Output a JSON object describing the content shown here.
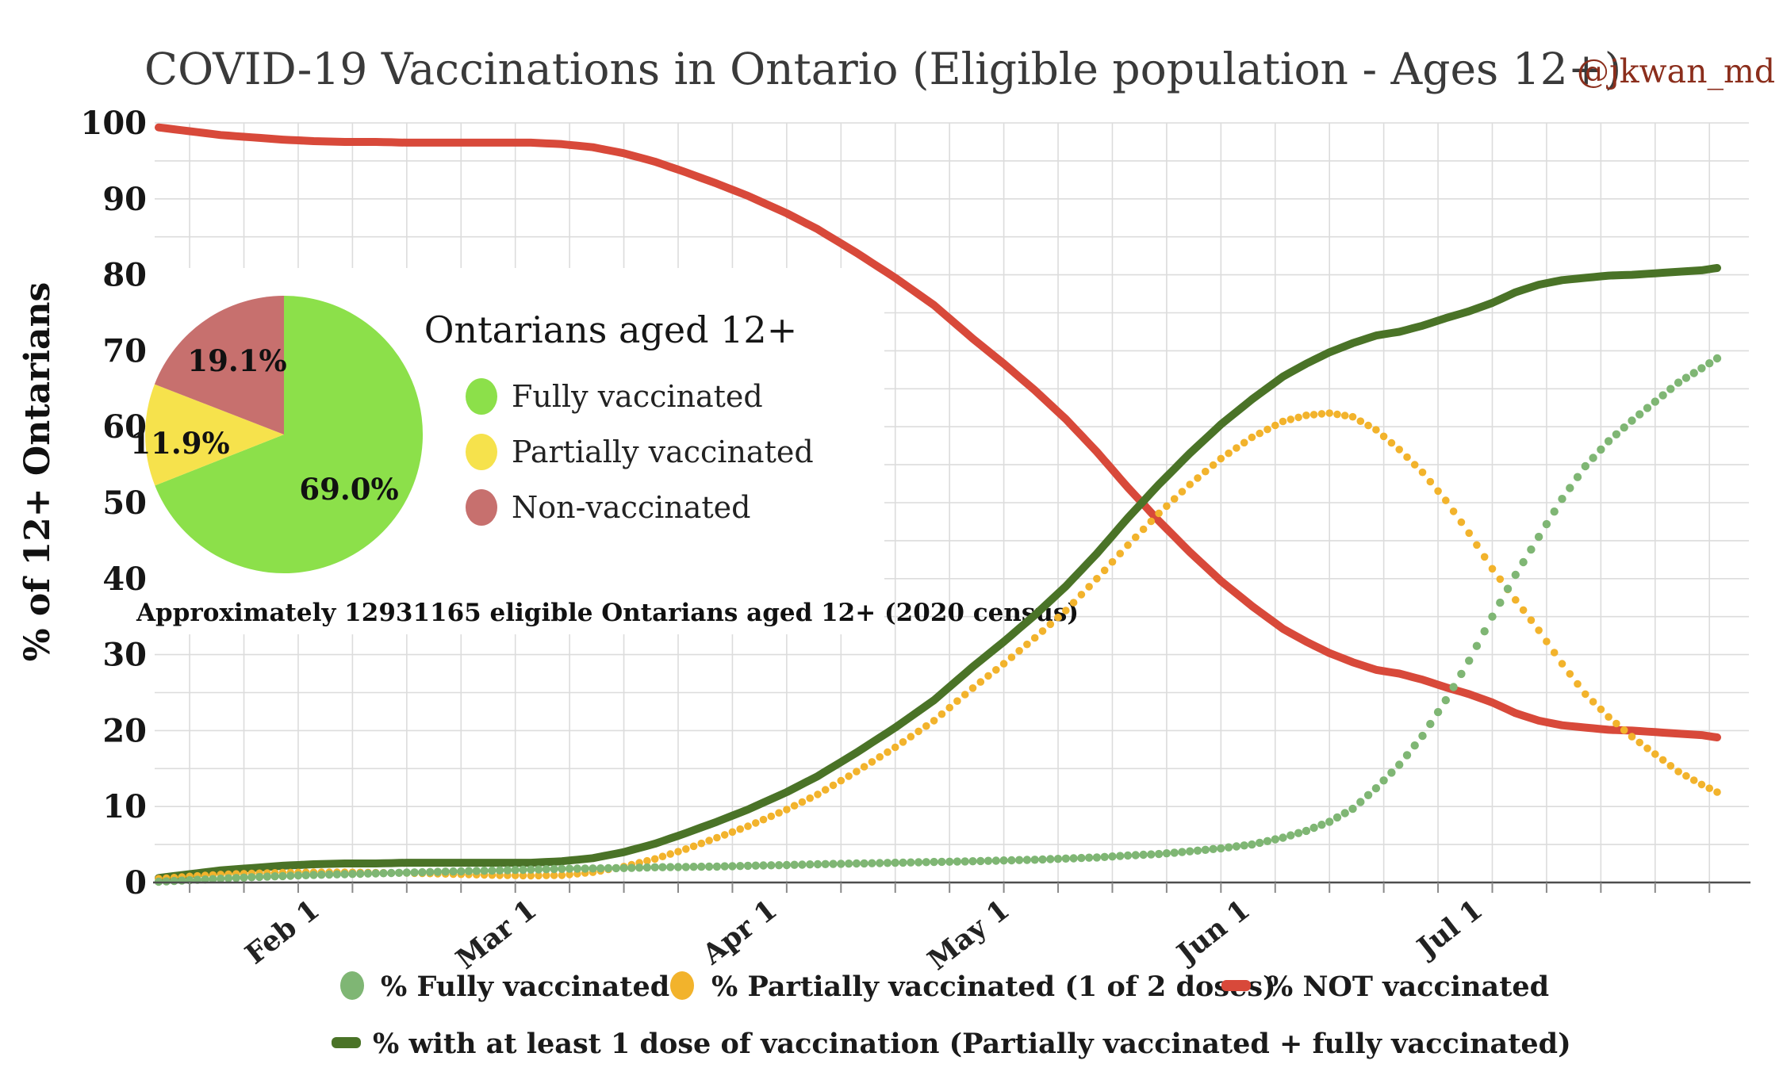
{
  "title": {
    "text": "COVID-19 Vaccinations in Ontario (Eligible population - Ages 12+)",
    "credit": "@jkwan_md"
  },
  "axes": {
    "y_title": "% of 12+ Ontarians",
    "y_ticks": [
      0,
      10,
      20,
      30,
      40,
      50,
      60,
      70,
      80,
      90,
      100
    ]
  },
  "inset": {
    "title": "Ontarians aged 12+",
    "footnote": "Approximately 12931165 eligible Ontarians aged 12+ (2020 census)",
    "pie": {
      "slices": [
        {
          "label": "Fully vaccinated",
          "pct": 69.0,
          "pct_label": "69.0%",
          "color": "#8ce04a"
        },
        {
          "label": "Partially vaccinated",
          "pct": 11.9,
          "pct_label": "11.9%",
          "color": "#f6e24c"
        },
        {
          "label": "Non-vaccinated",
          "pct": 19.1,
          "pct_label": "19.1%",
          "color": "#c7706e"
        }
      ]
    }
  },
  "legend": {
    "items": [
      {
        "label": "% Fully vaccinated",
        "marker": "circle",
        "color": "#7fb674"
      },
      {
        "label": "% Partially vaccinated (1 of 2 doses)",
        "marker": "circle",
        "color": "#f2b32c"
      },
      {
        "label": "% NOT vaccinated",
        "marker": "dash",
        "color": "#d8493a"
      },
      {
        "label": "% with at least 1 dose of vaccination (Partially vaccinated + fully vaccinated)",
        "marker": "dash",
        "color": "#4a7327"
      }
    ]
  },
  "chart_data": {
    "type": "line",
    "title": "COVID-19 Vaccinations in Ontario (Eligible population - Ages 12+)",
    "ylabel": "% of 12+ Ontarians",
    "ylim": [
      0,
      100
    ],
    "grid": {
      "horizontal_step": 5,
      "vertical_step_days": 7,
      "vertical_start_day": 4
    },
    "x_unit": "days from start of chart (mid-January to end of July 2021)",
    "x_max_day": 201,
    "x_month_ticks": [
      {
        "label": "Feb 1",
        "day": 22
      },
      {
        "label": "Mar 1",
        "day": 50
      },
      {
        "label": "Apr 1",
        "day": 81
      },
      {
        "label": "May 1",
        "day": 111
      },
      {
        "label": "Jun 1",
        "day": 142
      },
      {
        "label": "Jul 1",
        "day": 172
      }
    ],
    "series": [
      {
        "name": "% Fully vaccinated",
        "style": "dots",
        "color": "#7fb674",
        "dot_r": 5.2,
        "keypoints": [
          [
            0,
            0.1
          ],
          [
            4,
            0.3
          ],
          [
            8,
            0.5
          ],
          [
            12,
            0.7
          ],
          [
            16,
            0.85
          ],
          [
            20,
            1
          ],
          [
            24,
            1.1
          ],
          [
            28,
            1.2
          ],
          [
            32,
            1.3
          ],
          [
            36,
            1.4
          ],
          [
            40,
            1.5
          ],
          [
            44,
            1.6
          ],
          [
            48,
            1.7
          ],
          [
            52,
            1.8
          ],
          [
            56,
            1.85
          ],
          [
            60,
            1.9
          ],
          [
            64,
            2
          ],
          [
            68,
            2.05
          ],
          [
            72,
            2.1
          ],
          [
            76,
            2.2
          ],
          [
            81,
            2.3
          ],
          [
            85,
            2.4
          ],
          [
            90,
            2.5
          ],
          [
            95,
            2.6
          ],
          [
            100,
            2.7
          ],
          [
            105,
            2.8
          ],
          [
            109,
            2.9
          ],
          [
            113,
            3
          ],
          [
            117,
            3.15
          ],
          [
            121,
            3.3
          ],
          [
            125,
            3.55
          ],
          [
            129,
            3.75
          ],
          [
            133,
            4.1
          ],
          [
            137,
            4.5
          ],
          [
            141,
            5
          ],
          [
            145,
            5.9
          ],
          [
            148,
            6.8
          ],
          [
            151,
            8
          ],
          [
            154,
            9.7
          ],
          [
            157,
            12.4
          ],
          [
            160,
            15.5
          ],
          [
            163,
            19.3
          ],
          [
            166,
            24
          ],
          [
            169,
            29.2
          ],
          [
            172,
            35
          ],
          [
            175,
            40.5
          ],
          [
            178,
            45.5
          ],
          [
            181,
            50.5
          ],
          [
            184,
            54.8
          ],
          [
            187,
            58.1
          ],
          [
            190,
            60.8
          ],
          [
            193,
            63.3
          ],
          [
            196,
            65.8
          ],
          [
            199,
            67.7
          ],
          [
            201,
            69
          ]
        ]
      },
      {
        "name": "% Partially vaccinated (1 of 2 doses)",
        "style": "dots",
        "color": "#f2b32c",
        "dot_r": 4.8,
        "keypoints": [
          [
            0,
            0.5
          ],
          [
            4,
            0.8
          ],
          [
            8,
            1.05
          ],
          [
            12,
            1.2
          ],
          [
            16,
            1.3
          ],
          [
            20,
            1.35
          ],
          [
            24,
            1.35
          ],
          [
            28,
            1.3
          ],
          [
            32,
            1.25
          ],
          [
            36,
            1.15
          ],
          [
            40,
            1.05
          ],
          [
            44,
            0.95
          ],
          [
            48,
            0.9
          ],
          [
            52,
            0.95
          ],
          [
            56,
            1.35
          ],
          [
            60,
            2.1
          ],
          [
            64,
            3.1
          ],
          [
            68,
            4.4
          ],
          [
            72,
            5.9
          ],
          [
            76,
            7.4
          ],
          [
            81,
            9.6
          ],
          [
            85,
            11.6
          ],
          [
            90,
            14.6
          ],
          [
            95,
            17.8
          ],
          [
            100,
            21.3
          ],
          [
            105,
            25.6
          ],
          [
            109,
            28.8
          ],
          [
            113,
            32.2
          ],
          [
            117,
            35.8
          ],
          [
            121,
            40
          ],
          [
            125,
            44.4
          ],
          [
            129,
            48.6
          ],
          [
            133,
            52.4
          ],
          [
            137,
            55.8
          ],
          [
            141,
            58.6
          ],
          [
            145,
            60.7
          ],
          [
            148,
            61.5
          ],
          [
            151,
            61.8
          ],
          [
            154,
            61.3
          ],
          [
            157,
            59.6
          ],
          [
            160,
            57
          ],
          [
            163,
            54
          ],
          [
            166,
            50.3
          ],
          [
            169,
            46
          ],
          [
            172,
            41.3
          ],
          [
            175,
            37.2
          ],
          [
            178,
            33.2
          ],
          [
            181,
            28.8
          ],
          [
            184,
            24.8
          ],
          [
            187,
            21.8
          ],
          [
            190,
            19.2
          ],
          [
            193,
            16.9
          ],
          [
            196,
            14.6
          ],
          [
            199,
            12.9
          ],
          [
            201,
            11.9
          ]
        ]
      },
      {
        "name": "% NOT vaccinated",
        "style": "line",
        "color": "#d8493a",
        "width": 10,
        "derived_from": "100 - (fully + partially)",
        "keypoints": [
          [
            0,
            99.4
          ],
          [
            4,
            98.9
          ],
          [
            8,
            98.4
          ],
          [
            12,
            98.1
          ],
          [
            16,
            97.8
          ],
          [
            20,
            97.6
          ],
          [
            24,
            97.5
          ],
          [
            28,
            97.5
          ],
          [
            32,
            97.4
          ],
          [
            36,
            97.4
          ],
          [
            40,
            97.4
          ],
          [
            44,
            97.4
          ],
          [
            48,
            97.4
          ],
          [
            52,
            97.2
          ],
          [
            56,
            96.8
          ],
          [
            60,
            96
          ],
          [
            64,
            94.9
          ],
          [
            68,
            93.5
          ],
          [
            72,
            92
          ],
          [
            76,
            90.4
          ],
          [
            81,
            88.1
          ],
          [
            85,
            86
          ],
          [
            90,
            82.9
          ],
          [
            95,
            79.6
          ],
          [
            100,
            76
          ],
          [
            105,
            71.6
          ],
          [
            109,
            68.3
          ],
          [
            113,
            64.8
          ],
          [
            117,
            61
          ],
          [
            121,
            56.7
          ],
          [
            125,
            52
          ],
          [
            129,
            47.6
          ],
          [
            133,
            43.5
          ],
          [
            137,
            39.7
          ],
          [
            141,
            36.4
          ],
          [
            145,
            33.4
          ],
          [
            148,
            31.7
          ],
          [
            151,
            30.2
          ],
          [
            154,
            29
          ],
          [
            157,
            28
          ],
          [
            160,
            27.5
          ],
          [
            163,
            26.7
          ],
          [
            166,
            25.7
          ],
          [
            169,
            24.8
          ],
          [
            172,
            23.7
          ],
          [
            175,
            22.3
          ],
          [
            178,
            21.3
          ],
          [
            181,
            20.7
          ],
          [
            184,
            20.4
          ],
          [
            187,
            20.1
          ],
          [
            190,
            20
          ],
          [
            193,
            19.8
          ],
          [
            196,
            19.6
          ],
          [
            199,
            19.4
          ],
          [
            201,
            19.1
          ]
        ]
      },
      {
        "name": "% with at least 1 dose of vaccination (Partially vaccinated + fully vaccinated)",
        "style": "line",
        "color": "#4a7327",
        "width": 10,
        "derived_from": "fully + partially",
        "keypoints": [
          [
            0,
            0.6
          ],
          [
            4,
            1.1
          ],
          [
            8,
            1.6
          ],
          [
            12,
            1.9
          ],
          [
            16,
            2.2
          ],
          [
            20,
            2.4
          ],
          [
            24,
            2.5
          ],
          [
            28,
            2.5
          ],
          [
            32,
            2.6
          ],
          [
            36,
            2.6
          ],
          [
            40,
            2.6
          ],
          [
            44,
            2.6
          ],
          [
            48,
            2.6
          ],
          [
            52,
            2.8
          ],
          [
            56,
            3.2
          ],
          [
            60,
            4
          ],
          [
            64,
            5.1
          ],
          [
            68,
            6.5
          ],
          [
            72,
            8
          ],
          [
            76,
            9.6
          ],
          [
            81,
            11.9
          ],
          [
            85,
            14
          ],
          [
            90,
            17.1
          ],
          [
            95,
            20.4
          ],
          [
            100,
            24
          ],
          [
            105,
            28.4
          ],
          [
            109,
            31.7
          ],
          [
            113,
            35.2
          ],
          [
            117,
            39
          ],
          [
            121,
            43.3
          ],
          [
            125,
            48
          ],
          [
            129,
            52.4
          ],
          [
            133,
            56.5
          ],
          [
            137,
            60.3
          ],
          [
            141,
            63.6
          ],
          [
            145,
            66.6
          ],
          [
            148,
            68.3
          ],
          [
            151,
            69.8
          ],
          [
            154,
            71
          ],
          [
            157,
            72
          ],
          [
            160,
            72.5
          ],
          [
            163,
            73.3
          ],
          [
            166,
            74.3
          ],
          [
            169,
            75.2
          ],
          [
            172,
            76.3
          ],
          [
            175,
            77.7
          ],
          [
            178,
            78.7
          ],
          [
            181,
            79.3
          ],
          [
            184,
            79.6
          ],
          [
            187,
            79.9
          ],
          [
            190,
            80
          ],
          [
            193,
            80.2
          ],
          [
            196,
            80.4
          ],
          [
            199,
            80.6
          ],
          [
            201,
            80.9
          ]
        ]
      }
    ]
  }
}
